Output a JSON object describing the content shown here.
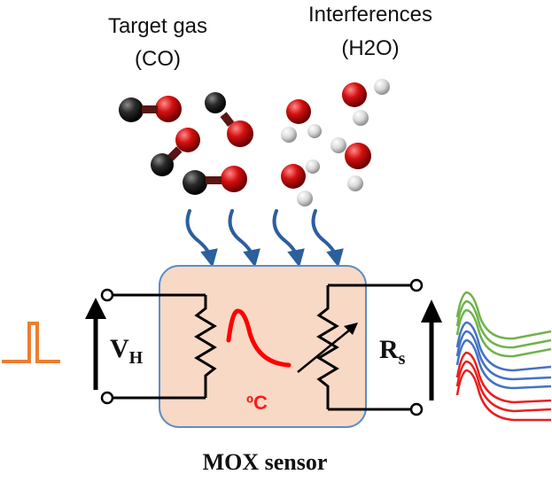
{
  "labels": {
    "target_gas": "Target gas",
    "target_gas_formula": "(CO)",
    "interferences": "Interferences",
    "interferences_formula": "(H2O)",
    "heater_voltage_main": "V",
    "heater_voltage_sub": "H",
    "sensor_resistance_main": "R",
    "sensor_resistance_sub": "s",
    "temperature_unit": "ºC",
    "sensor_name": "MOX sensor"
  },
  "colors": {
    "sensor_box_fill": "#f8d9c6",
    "sensor_box_stroke": "#5b8ec7",
    "arrow_blue": "#2b5f9e",
    "heater_pulse": "#ed7d31",
    "temperature_curve": "#ff0000",
    "carbon_atom": "#2a2a2a",
    "oxygen_atom": "#d41010",
    "hydrogen_atom": "#d8d8d8",
    "response_green": "#6fb34a",
    "response_blue": "#4472c4",
    "response_red": "#e8201c"
  },
  "response_curves": {
    "series": [
      {
        "color_group": "green",
        "count": 3
      },
      {
        "color_group": "blue",
        "count": 3
      },
      {
        "color_group": "red",
        "count": 3
      }
    ]
  }
}
